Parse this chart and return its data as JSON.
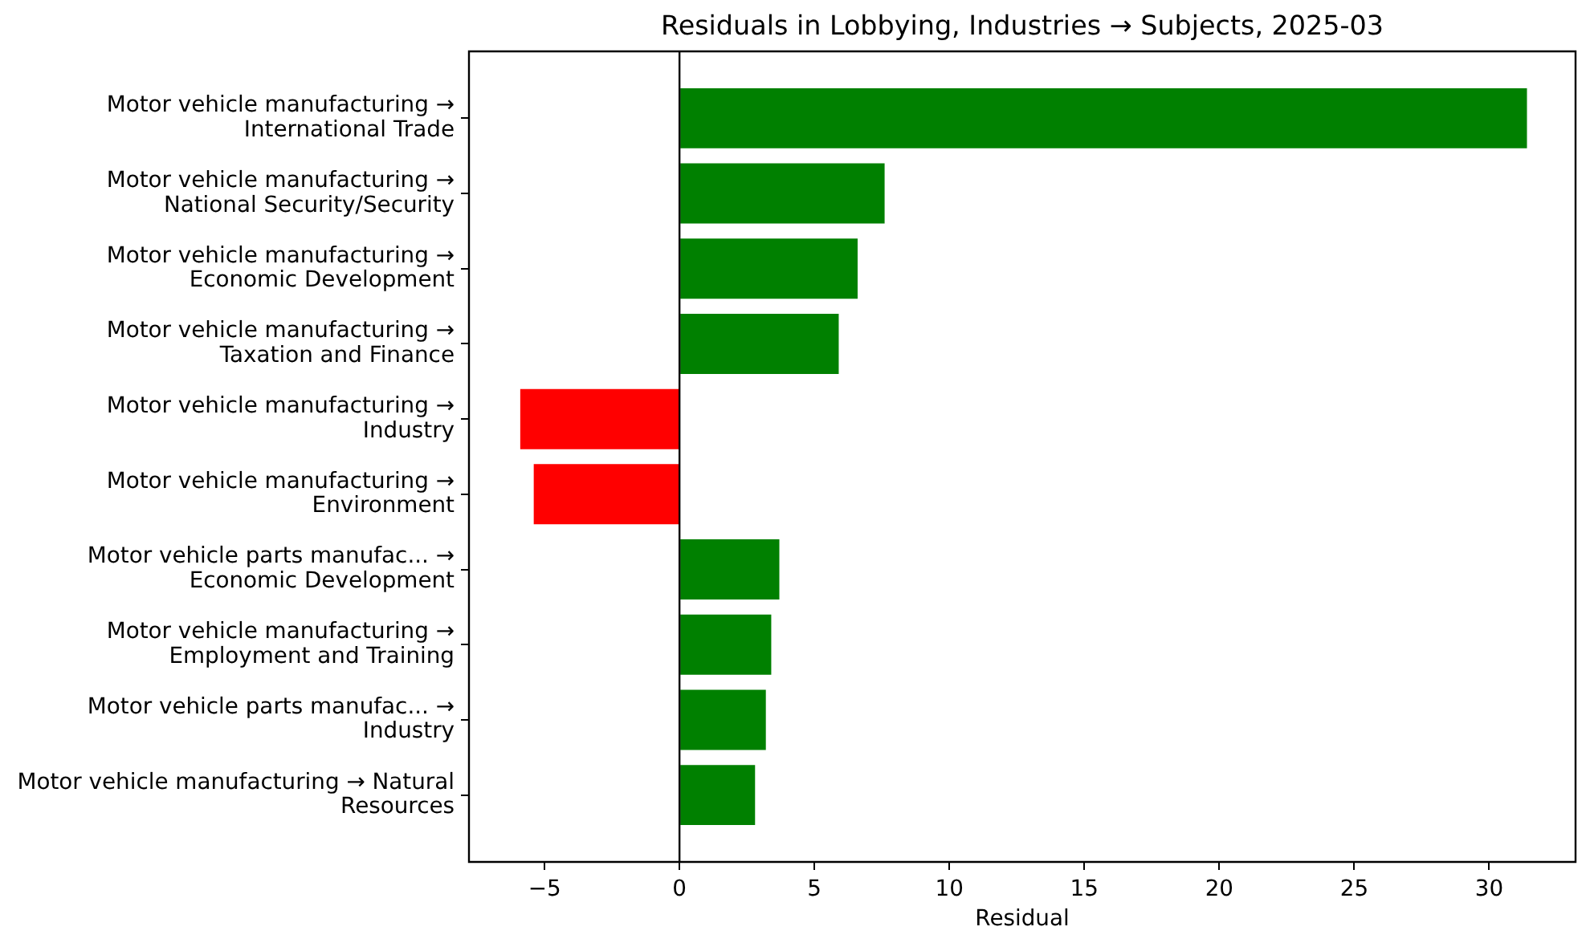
{
  "chart_data": {
    "type": "bar",
    "orientation": "horizontal",
    "title": "Residuals in Lobbying, Industries → Subjects, 2025-03",
    "xlabel": "Residual",
    "categories": [
      "Motor vehicle manufacturing →\nInternational Trade",
      "Motor vehicle manufacturing →\nNational Security/Security",
      "Motor vehicle manufacturing →\nEconomic Development",
      "Motor vehicle manufacturing →\nTaxation and Finance",
      "Motor vehicle manufacturing →\nIndustry",
      "Motor vehicle manufacturing →\nEnvironment",
      "Motor vehicle parts manufac... →\nEconomic Development",
      "Motor vehicle manufacturing →\nEmployment and Training",
      "Motor vehicle parts manufac... →\nIndustry",
      "Motor vehicle manufacturing → Natural\nResources"
    ],
    "values": [
      31.4,
      7.6,
      6.6,
      5.9,
      -5.9,
      -5.4,
      3.7,
      3.4,
      3.2,
      2.8
    ],
    "colors": [
      "#008000",
      "#008000",
      "#008000",
      "#008000",
      "#ff0000",
      "#ff0000",
      "#008000",
      "#008000",
      "#008000",
      "#008000"
    ],
    "xlim": [
      -7.8,
      33.2
    ],
    "xticks": [
      {
        "value": -5,
        "label": "−5"
      },
      0,
      5,
      10,
      15,
      20,
      25,
      30
    ],
    "ref_lines": [
      {
        "axis": "x",
        "value": 0,
        "color": "#000000"
      }
    ],
    "grid": false,
    "legend": false
  }
}
